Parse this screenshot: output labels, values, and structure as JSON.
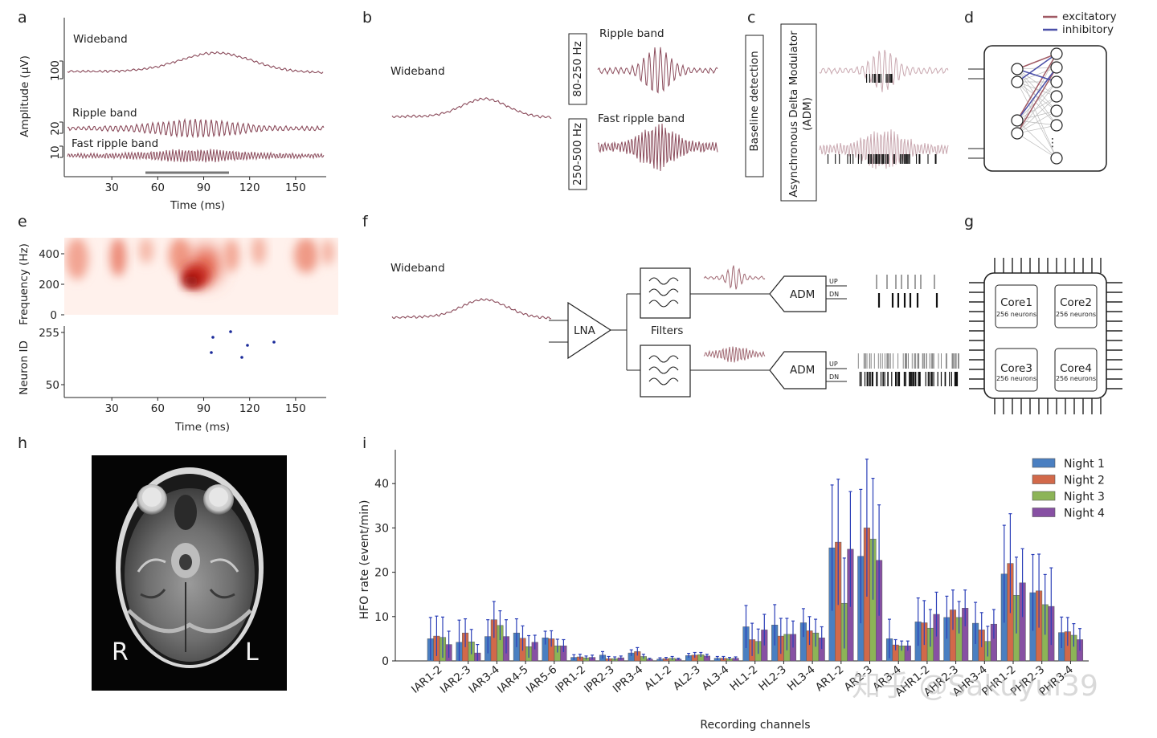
{
  "panel_labels": {
    "a": "a",
    "b": "b",
    "c": "c",
    "d": "d",
    "e": "e",
    "f": "f",
    "g": "g",
    "h": "h",
    "i": "i"
  },
  "panel_a": {
    "ylabel": "Amplitude (μV)",
    "xlabel": "Time (ms)",
    "xticks": [
      "30",
      "60",
      "90",
      "120",
      "150"
    ],
    "scale_labels": [
      "100",
      "20",
      "10"
    ],
    "traces": [
      "Wideband",
      "Ripple band",
      "Fast ripple band"
    ]
  },
  "panel_b": {
    "wideband": "Wideband",
    "filter1": "80-250 Hz",
    "filter2": "250-500 Hz",
    "ripple": "Ripple band",
    "fast_ripple": "Fast ripple band"
  },
  "panel_c": {
    "baseline": "Baseline detection",
    "adm_line1": "Asynchronous Delta Modulator",
    "adm_line2": "(ADM)"
  },
  "panel_d": {
    "legend": [
      {
        "label": "excitatory",
        "color": "#a05a64"
      },
      {
        "label": "inhibitory",
        "color": "#4a4fa8"
      }
    ],
    "ellipsis": "⋮"
  },
  "panel_e": {
    "ylabel_top": "Frequency (Hz)",
    "yticks_top": [
      "400",
      "200",
      "0"
    ],
    "ylabel_bottom": "Neuron ID",
    "yticks_bottom": [
      "255",
      "50"
    ],
    "xticks": [
      "30",
      "60",
      "90",
      "120",
      "150"
    ],
    "xlabel": "Time (ms)"
  },
  "panel_f": {
    "wideband": "Wideband",
    "lna": "LNA",
    "filters": "Filters",
    "adm": "ADM",
    "up": "UP",
    "dn": "DN"
  },
  "panel_g": {
    "cores": [
      {
        "name": "Core1",
        "sub": "256 neurons"
      },
      {
        "name": "Core2",
        "sub": "256 neurons"
      },
      {
        "name": "Core3",
        "sub": "256 neurons"
      },
      {
        "name": "Core4",
        "sub": "256 neurons"
      }
    ]
  },
  "panel_h": {
    "left_label": "R",
    "right_label": "L"
  },
  "chart_data": {
    "type": "bar",
    "title": "",
    "xlabel": "Recording channels",
    "ylabel": "HFO rate (event/min)",
    "ylim": [
      0,
      48
    ],
    "yticks": [
      0,
      10,
      20,
      30,
      40
    ],
    "grid": false,
    "legend_position": "top-right",
    "categories": [
      "IAR1-2",
      "IAR2-3",
      "IAR3-4",
      "IAR4-5",
      "IAR5-6",
      "IPR1-2",
      "IPR2-3",
      "IPR3-4",
      "AL1-2",
      "AL2-3",
      "AL3-4",
      "HL1-2",
      "HL2-3",
      "HL3-4",
      "AR1-2",
      "AR2-3",
      "AR3-4",
      "AHR1-2",
      "AHR2-3",
      "AHR3-4",
      "PHR1-2",
      "PHR2-3",
      "PHR3-4"
    ],
    "series": [
      {
        "name": "Night 1",
        "color": "#4a7fc1",
        "values": [
          5.0,
          4.2,
          5.5,
          6.3,
          5.2,
          0.8,
          1.3,
          1.8,
          0.4,
          1.2,
          0.6,
          7.7,
          8.1,
          8.6,
          25.5,
          23.6,
          5.0,
          8.8,
          9.8,
          8.5,
          19.6,
          15.4,
          6.4
        ]
      },
      {
        "name": "Night 2",
        "color": "#d2694a",
        "values": [
          5.6,
          6.3,
          9.3,
          5.1,
          5.0,
          0.9,
          0.5,
          2.1,
          0.5,
          1.3,
          0.6,
          4.8,
          5.6,
          6.8,
          26.8,
          30.0,
          3.6,
          8.6,
          11.5,
          7.0,
          22.0,
          15.8,
          6.6
        ]
      },
      {
        "name": "Night 3",
        "color": "#8cb457",
        "values": [
          5.3,
          4.3,
          8.0,
          3.2,
          3.4,
          0.7,
          0.5,
          1.0,
          0.6,
          1.4,
          0.5,
          4.4,
          6.0,
          6.3,
          13.0,
          27.5,
          3.4,
          7.4,
          9.8,
          4.4,
          14.8,
          12.7,
          5.8
        ]
      },
      {
        "name": "Night 4",
        "color": "#8750a3",
        "values": [
          3.7,
          1.8,
          5.5,
          4.2,
          3.4,
          0.8,
          0.7,
          0.4,
          0.4,
          1.1,
          0.6,
          7.0,
          6.0,
          5.2,
          25.2,
          22.7,
          3.4,
          10.5,
          11.9,
          8.3,
          17.6,
          12.3,
          4.8
        ]
      }
    ],
    "errors": [
      [
        4.8,
        5.0,
        3.8,
        3.2,
        1.5,
        0.6,
        0.8,
        0.7,
        0.3,
        0.5,
        0.4,
        4.8,
        4.6,
        3.2,
        14.2,
        15.1,
        4.4,
        5.4,
        4.8,
        4.7,
        11.0,
        8.6,
        3.5
      ],
      [
        4.5,
        3.2,
        4.1,
        2.8,
        1.8,
        0.6,
        0.5,
        0.9,
        0.3,
        0.6,
        0.4,
        3.7,
        4.0,
        3.2,
        14.2,
        15.5,
        1.2,
        5.0,
        4.5,
        3.9,
        11.2,
        8.3,
        3.2
      ],
      [
        4.6,
        2.8,
        3.3,
        2.5,
        1.5,
        0.4,
        0.4,
        0.5,
        0.4,
        0.5,
        0.3,
        2.8,
        3.6,
        3.1,
        10.2,
        13.7,
        1.1,
        4.2,
        3.6,
        3.4,
        8.6,
        6.8,
        2.6
      ],
      [
        3.0,
        1.9,
        3.8,
        1.6,
        1.4,
        0.5,
        0.4,
        0.2,
        0.2,
        0.4,
        0.3,
        3.5,
        3.0,
        2.5,
        13.0,
        12.5,
        1.1,
        5.0,
        4.1,
        3.3,
        7.7,
        8.7,
        2.5
      ]
    ]
  },
  "watermark": "知乎 @Sakuyui39"
}
